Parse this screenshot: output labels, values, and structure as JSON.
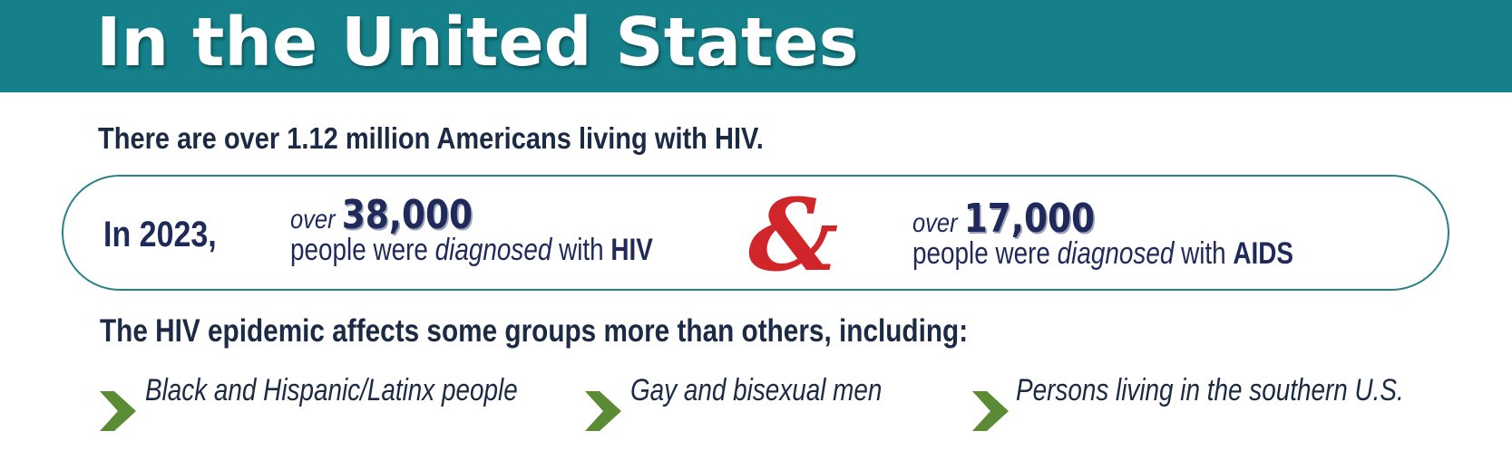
{
  "header": {
    "title": "In the United States"
  },
  "intro": "There are over 1.12 million Americans living with HIV.",
  "stats": {
    "year": "In 2023,",
    "items": [
      {
        "prefix": "over",
        "number": "38,000",
        "text": "people were",
        "emphasis": "diagnosed",
        "with": "with",
        "subject": "HIV"
      },
      {
        "prefix": "over",
        "number": "17,000",
        "text": "people were",
        "emphasis": "diagnosed",
        "with": "with",
        "subject": "AIDS"
      }
    ],
    "connector": "&"
  },
  "groups": {
    "heading": "The HIV epidemic affects some groups more than others, including:",
    "items": [
      "Black and Hispanic/Latinx people",
      "Gay and bisexual men",
      "Persons living in the southern U.S."
    ]
  }
}
